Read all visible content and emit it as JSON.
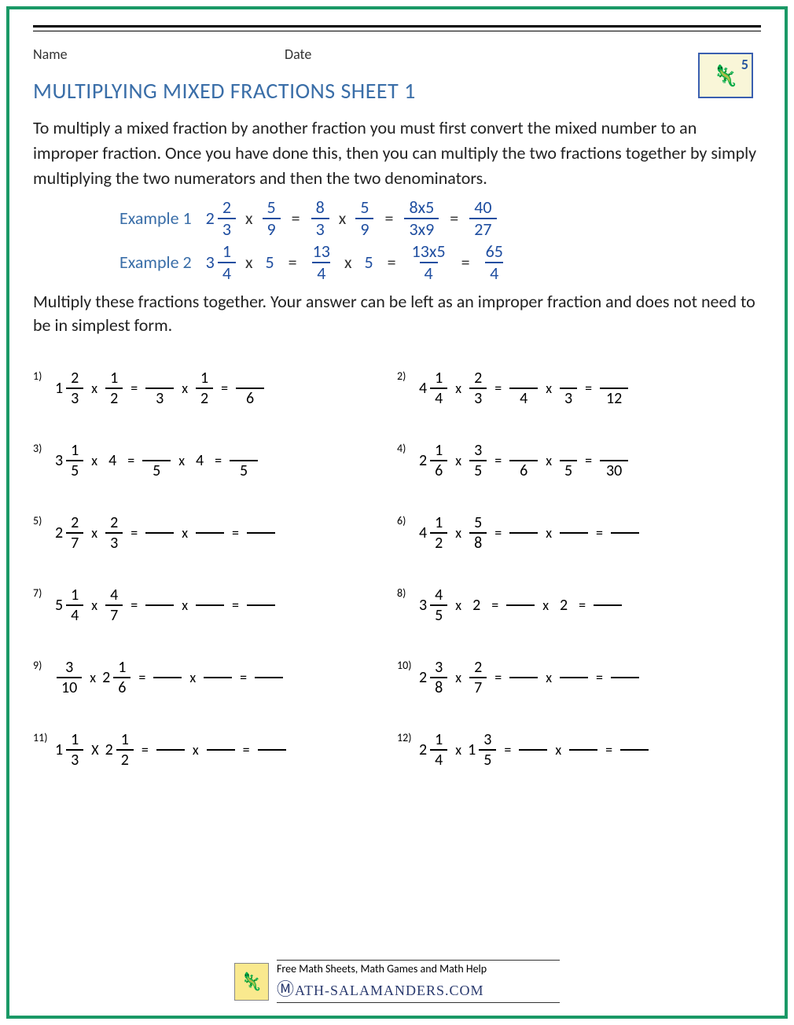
{
  "header": {
    "name_label": "Name",
    "date_label": "Date"
  },
  "logo": {
    "grade": "5"
  },
  "title": "MULTIPLYING MIXED FRACTIONS SHEET 1",
  "intro": "To multiply a mixed fraction by another fraction you must first convert the mixed number to an improper fraction. Once you have done this, then you can multiply the two fractions together by simply multiplying the two numerators and then the two denominators.",
  "examples": [
    {
      "label": "Example 1",
      "left_whole": "2",
      "left_num": "2",
      "left_den": "3",
      "right_num": "5",
      "right_den": "9",
      "step1_num": "8",
      "step1_den": "3",
      "step1b_num": "5",
      "step1b_den": "9",
      "step2_num": "8x5",
      "step2_den": "3x9",
      "ans_num": "40",
      "ans_den": "27"
    },
    {
      "label": "Example 2",
      "left_whole": "3",
      "left_num": "1",
      "left_den": "4",
      "right_whole": "5",
      "step1_num": "13",
      "step1_den": "4",
      "step1b_whole": "5",
      "step2_num": "13x5",
      "step2_den": "4",
      "ans_num": "65",
      "ans_den": "4"
    }
  ],
  "instructions": "Multiply these fractions together. Your answer can be left as an improper fraction and does not need to be in simplest form.",
  "problems": [
    {
      "n": "1)",
      "a_whole": "1",
      "a_num": "2",
      "a_den": "3",
      "op": "x",
      "b_num": "1",
      "b_den": "2",
      "s1_den": "3",
      "s1b_num": "1",
      "s1b_den": "2",
      "ans_den": "6"
    },
    {
      "n": "2)",
      "a_whole": "4",
      "a_num": "1",
      "a_den": "4",
      "op": "x",
      "b_num": "2",
      "b_den": "3",
      "s1_den": "4",
      "s1b_den": "3",
      "ans_den": "12"
    },
    {
      "n": "3)",
      "a_whole": "3",
      "a_num": "1",
      "a_den": "5",
      "op": "x",
      "b_whole": "4",
      "s1_den": "5",
      "s1b_whole": "4",
      "ans_den": "5"
    },
    {
      "n": "4)",
      "a_whole": "2",
      "a_num": "1",
      "a_den": "6",
      "op": "x",
      "b_num": "3",
      "b_den": "5",
      "s1_den": "6",
      "s1b_den": "5",
      "ans_den": "30"
    },
    {
      "n": "5)",
      "a_whole": "2",
      "a_num": "2",
      "a_den": "7",
      "op": "x",
      "b_num": "2",
      "b_den": "3"
    },
    {
      "n": "6)",
      "a_whole": "4",
      "a_num": "1",
      "a_den": "2",
      "op": "x",
      "b_num": "5",
      "b_den": "8"
    },
    {
      "n": "7)",
      "a_whole": "5",
      "a_num": "1",
      "a_den": "4",
      "op": "x",
      "b_num": "4",
      "b_den": "7"
    },
    {
      "n": "8)",
      "a_whole": "3",
      "a_num": "4",
      "a_den": "5",
      "op": "x",
      "b_whole": "2",
      "s1b_whole": "2"
    },
    {
      "n": "9)",
      "a_num": "3",
      "a_den": "10",
      "op": "x",
      "b_whole": "2",
      "b_num": "1",
      "b_den": "6",
      "b_mixed": true
    },
    {
      "n": "10)",
      "a_whole": "2",
      "a_num": "3",
      "a_den": "8",
      "op": "x",
      "b_num": "2",
      "b_den": "7"
    },
    {
      "n": "11)",
      "a_whole": "1",
      "a_num": "1",
      "a_den": "3",
      "op": "X",
      "b_whole": "2",
      "b_num": "1",
      "b_den": "2",
      "b_mixed": true
    },
    {
      "n": "12)",
      "a_whole": "2",
      "a_num": "1",
      "a_den": "4",
      "op": "x",
      "b_whole": "1",
      "b_num": "3",
      "b_den": "5",
      "b_mixed": true
    }
  ],
  "footer": {
    "line1": "Free Math Sheets, Math Games and Math Help",
    "line2": "ATH-SALAMANDERS.COM"
  },
  "colors": {
    "frame": "#1a9966",
    "title": "#3a6ea8",
    "example_blue": "#1f4ea0",
    "text": "#222222"
  }
}
